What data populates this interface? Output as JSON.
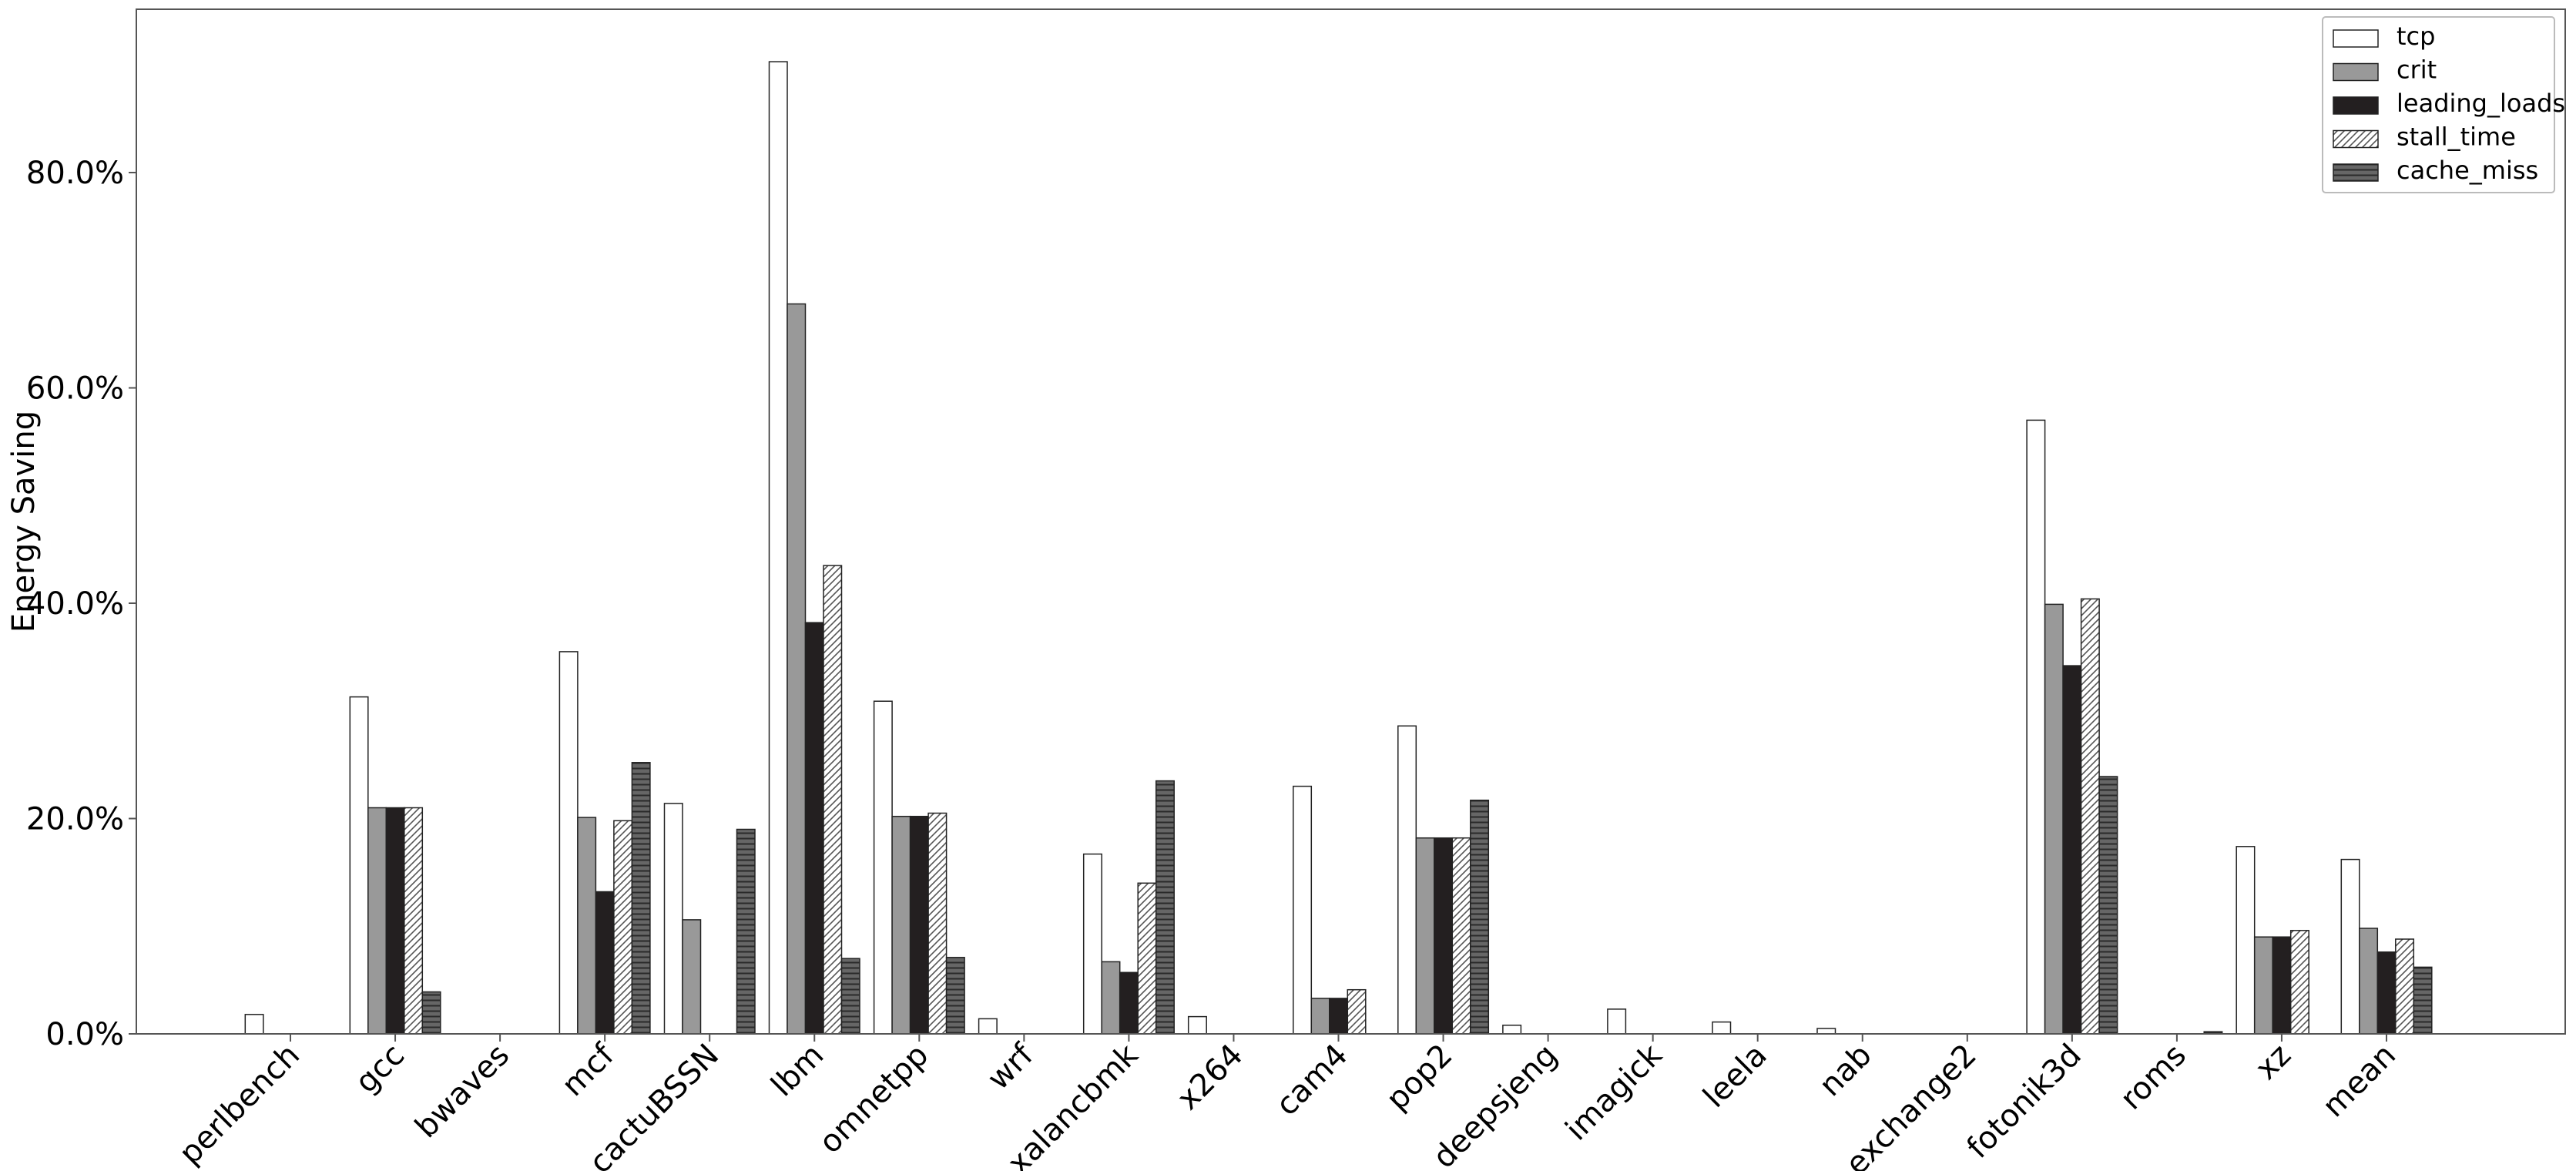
{
  "chart_data": {
    "type": "bar",
    "ylabel": "Energy Saving",
    "xlabel": "",
    "ylim": [
      0,
      95
    ],
    "yticks": [
      0,
      20,
      40,
      60,
      80
    ],
    "ytick_labels": [
      "0.0%",
      "20.0%",
      "40.0%",
      "60.0%",
      "80.0%"
    ],
    "grid": false,
    "legend_position": "top-right",
    "categories": [
      "perlbench",
      "gcc",
      "bwaves",
      "mcf",
      "cactuBSSN",
      "lbm",
      "omnetpp",
      "wrf",
      "xalancbmk",
      "x264",
      "cam4",
      "pop2",
      "deepsjeng",
      "imagick",
      "leela",
      "nab",
      "exchange2",
      "fotonik3d",
      "roms",
      "xz",
      "mean"
    ],
    "series": [
      {
        "name": "tcp",
        "fill": "#ffffff",
        "pattern": "none",
        "values": [
          1.8,
          31.3,
          0,
          35.5,
          21.4,
          90.3,
          30.9,
          1.4,
          16.7,
          1.6,
          23.0,
          28.6,
          0.8,
          2.3,
          1.1,
          0.5,
          0,
          57.0,
          0,
          17.4,
          16.2
        ]
      },
      {
        "name": "crit",
        "fill": "#999999",
        "pattern": "none",
        "values": [
          0,
          21.0,
          0,
          20.1,
          10.6,
          67.8,
          20.2,
          0,
          6.7,
          0,
          3.3,
          18.2,
          0,
          0,
          0,
          0,
          0,
          39.9,
          0,
          9.0,
          9.8
        ]
      },
      {
        "name": "leading_loads",
        "fill": "#231f20",
        "pattern": "none",
        "values": [
          0,
          21.0,
          0,
          13.2,
          0,
          38.2,
          20.2,
          0,
          5.7,
          0,
          3.3,
          18.2,
          0,
          0,
          0,
          0,
          0,
          34.2,
          0,
          9.0,
          7.6
        ]
      },
      {
        "name": "stall_time",
        "fill": "#ffffff",
        "pattern": "diag",
        "values": [
          0,
          21.0,
          0,
          19.8,
          0,
          43.5,
          20.5,
          0,
          14.0,
          0,
          4.1,
          18.2,
          0,
          0,
          0,
          0,
          0,
          40.4,
          0,
          9.6,
          8.8
        ]
      },
      {
        "name": "cache_miss",
        "fill": "#666666",
        "pattern": "horiz",
        "values": [
          0,
          3.9,
          0,
          25.2,
          19.0,
          7.0,
          7.1,
          0,
          23.5,
          0,
          0,
          21.7,
          0,
          0,
          0,
          0,
          0,
          23.9,
          0.2,
          0,
          6.2
        ]
      }
    ]
  }
}
